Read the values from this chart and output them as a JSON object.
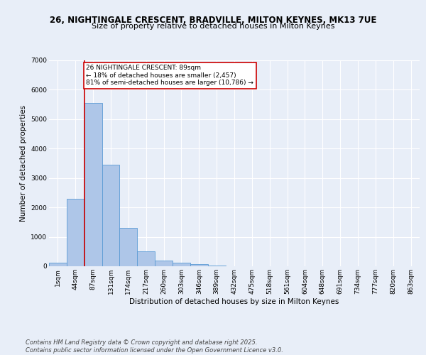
{
  "title1": "26, NIGHTINGALE CRESCENT, BRADVILLE, MILTON KEYNES, MK13 7UE",
  "title2": "Size of property relative to detached houses in Milton Keynes",
  "xlabel": "Distribution of detached houses by size in Milton Keynes",
  "ylabel": "Number of detached properties",
  "bins": [
    "1sqm",
    "44sqm",
    "87sqm",
    "131sqm",
    "174sqm",
    "217sqm",
    "260sqm",
    "303sqm",
    "346sqm",
    "389sqm",
    "432sqm",
    "475sqm",
    "518sqm",
    "561sqm",
    "604sqm",
    "648sqm",
    "691sqm",
    "734sqm",
    "777sqm",
    "820sqm",
    "863sqm"
  ],
  "values": [
    130,
    2300,
    5550,
    3450,
    1300,
    500,
    200,
    130,
    80,
    30,
    0,
    0,
    0,
    0,
    0,
    0,
    0,
    0,
    0,
    0,
    0
  ],
  "bar_color": "#aec6e8",
  "bar_edge_color": "#5b9bd5",
  "vline_color": "#cc0000",
  "annotation_text": "26 NIGHTINGALE CRESCENT: 89sqm\n← 18% of detached houses are smaller (2,457)\n81% of semi-detached houses are larger (10,786) →",
  "annotation_box_color": "#cc0000",
  "ylim": [
    0,
    7000
  ],
  "yticks": [
    0,
    1000,
    2000,
    3000,
    4000,
    5000,
    6000,
    7000
  ],
  "bg_color": "#e8eef8",
  "plot_bg_color": "#e8eef8",
  "footer": "Contains HM Land Registry data © Crown copyright and database right 2025.\nContains public sector information licensed under the Open Government Licence v3.0.",
  "title1_fontsize": 8.5,
  "title2_fontsize": 8,
  "axis_label_fontsize": 7.5,
  "tick_fontsize": 6.5,
  "annotation_fontsize": 6.5,
  "footer_fontsize": 6
}
